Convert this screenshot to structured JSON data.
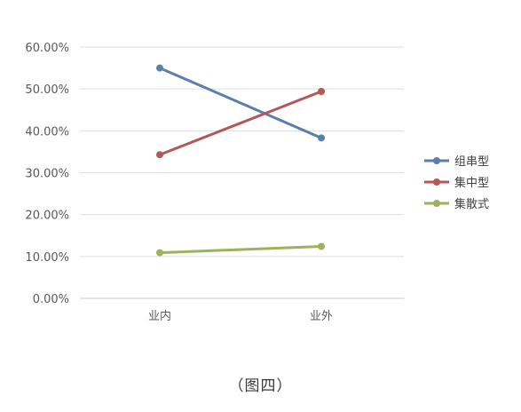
{
  "caption": "（图四）",
  "chart_data": {
    "type": "line",
    "categories": [
      "业内",
      "业外"
    ],
    "y_ticks": [
      "0.00%",
      "10.00%",
      "20.00%",
      "30.00%",
      "40.00%",
      "50.00%",
      "60.00%"
    ],
    "ylim": [
      0,
      60
    ],
    "grid": true,
    "legend_position": "right",
    "series": [
      {
        "name": "组串型",
        "values": [
          55.0,
          38.3
        ],
        "color": "#5b7fad"
      },
      {
        "name": "集中型",
        "values": [
          34.3,
          49.4
        ],
        "color": "#b45755"
      },
      {
        "name": "集散式",
        "values": [
          10.9,
          12.4
        ],
        "color": "#9bb35c"
      }
    ]
  }
}
